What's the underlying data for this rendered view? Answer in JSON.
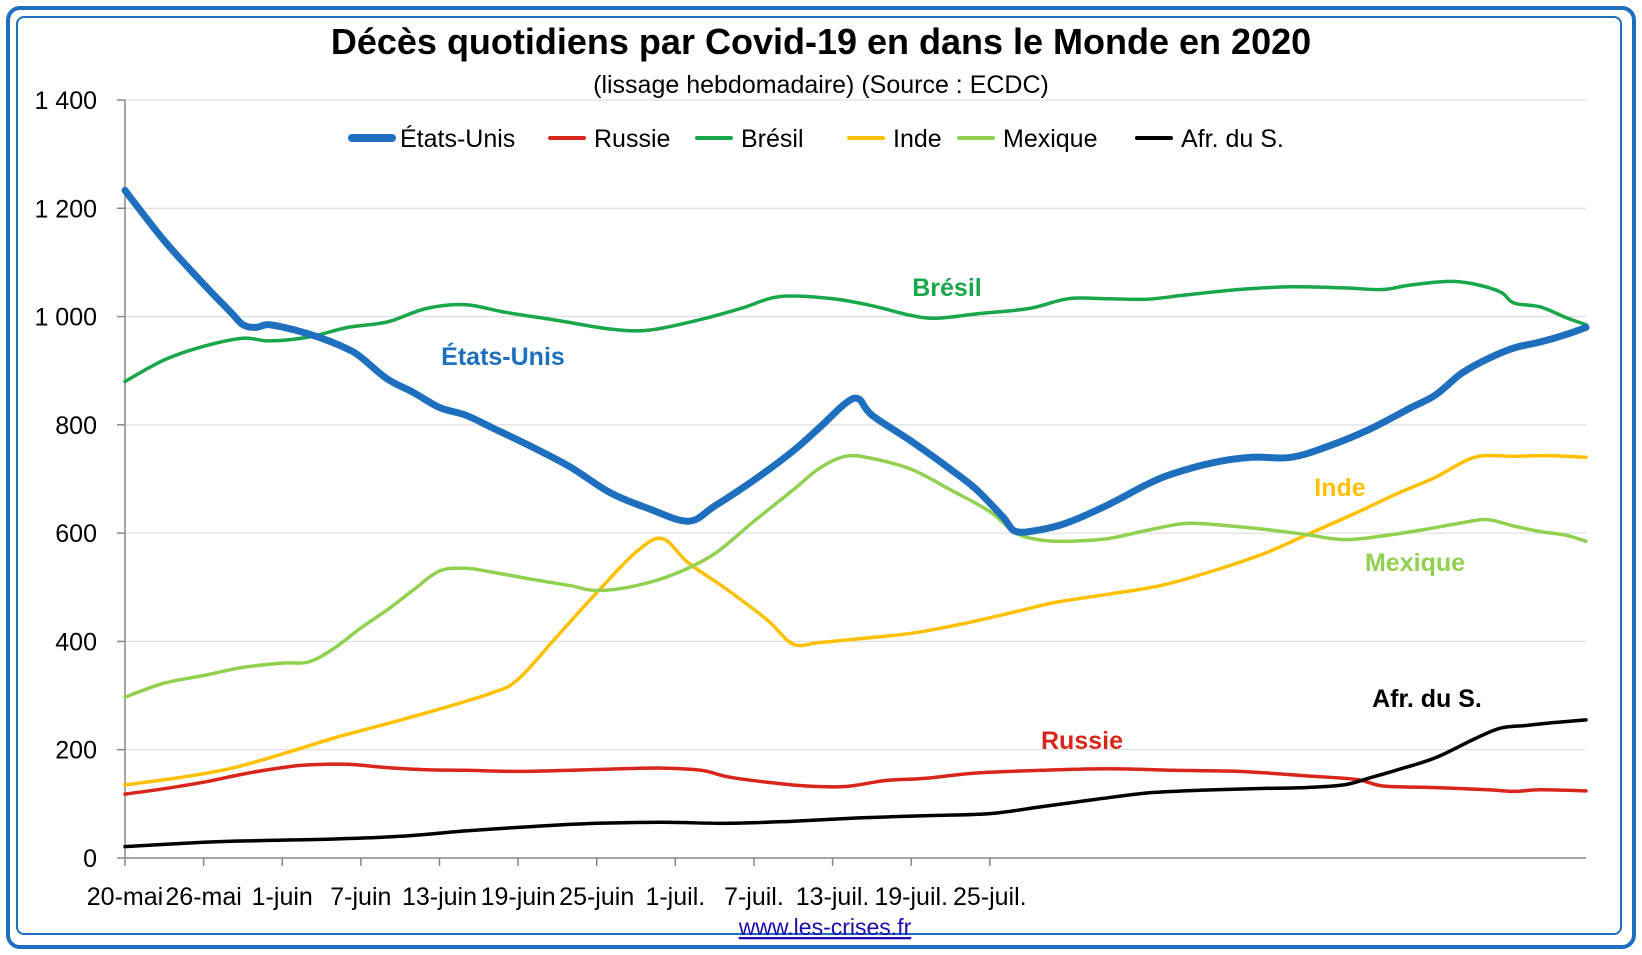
{
  "chart_data": {
    "type": "line",
    "title": "Décès quotidiens par Covid-19 en dans le Monde en 2020",
    "subtitle": "(lissage hebdomadaire) (Source : ECDC)",
    "xlabel": "",
    "ylabel": "",
    "ylim": [
      0,
      1400
    ],
    "yticks": [
      0,
      200,
      400,
      600,
      800,
      1000,
      1200,
      1400
    ],
    "ytick_labels": [
      "0",
      "200",
      "400",
      "600",
      "800",
      "1 000",
      "1 200",
      "1 400"
    ],
    "x_tick_labels": [
      "20-mai",
      "26-mai",
      "1-juin",
      "7-juin",
      "13-juin",
      "19-juin",
      "25-juin",
      "1-juil.",
      "7-juil.",
      "13-juil.",
      "19-juil.",
      "25-juil."
    ],
    "grid": true,
    "legend_position": "top",
    "series": [
      {
        "name": "États-Unis",
        "color": "#1f6fbf",
        "emphasis": true,
        "values": [
          [
            0,
            1233
          ],
          [
            3,
            1140
          ],
          [
            6,
            1060
          ],
          [
            8,
            1010
          ],
          [
            9,
            985
          ],
          [
            10,
            980
          ],
          [
            11,
            985
          ],
          [
            13,
            975
          ],
          [
            15,
            960
          ],
          [
            17,
            940
          ],
          [
            18,
            925
          ],
          [
            20,
            885
          ],
          [
            22,
            860
          ],
          [
            24,
            832
          ],
          [
            26,
            818
          ],
          [
            28,
            795
          ],
          [
            31,
            760
          ],
          [
            34,
            722
          ],
          [
            37,
            675
          ],
          [
            40,
            645
          ],
          [
            43,
            622
          ],
          [
            45,
            650
          ],
          [
            48,
            698
          ],
          [
            51,
            752
          ],
          [
            53,
            795
          ],
          [
            55,
            840
          ],
          [
            56,
            848
          ],
          [
            57,
            818
          ],
          [
            60,
            770
          ],
          [
            63,
            718
          ],
          [
            65,
            680
          ],
          [
            67,
            630
          ],
          [
            68,
            603
          ],
          [
            70,
            607
          ],
          [
            72,
            620
          ],
          [
            75,
            652
          ],
          [
            78,
            690
          ],
          [
            80,
            710
          ],
          [
            83,
            730
          ],
          [
            86,
            740
          ],
          [
            89,
            740
          ],
          [
            92,
            762
          ],
          [
            95,
            792
          ],
          [
            98,
            830
          ],
          [
            100,
            855
          ],
          [
            102,
            895
          ],
          [
            104,
            922
          ],
          [
            106,
            942
          ],
          [
            108,
            953
          ],
          [
            110,
            967
          ],
          [
            111.5,
            980
          ]
        ]
      },
      {
        "name": "Russie",
        "color": "#d9261c",
        "emphasis": false,
        "values": [
          [
            0,
            118
          ],
          [
            3,
            128
          ],
          [
            6,
            140
          ],
          [
            9,
            155
          ],
          [
            12,
            167
          ],
          [
            14,
            172
          ],
          [
            17,
            173
          ],
          [
            20,
            167
          ],
          [
            23,
            163
          ],
          [
            26,
            162
          ],
          [
            30,
            160
          ],
          [
            34,
            162
          ],
          [
            38,
            165
          ],
          [
            41,
            166
          ],
          [
            44,
            162
          ],
          [
            46,
            150
          ],
          [
            49,
            140
          ],
          [
            52,
            133
          ],
          [
            55,
            132
          ],
          [
            58,
            143
          ],
          [
            61,
            147
          ],
          [
            65,
            157
          ],
          [
            70,
            162
          ],
          [
            75,
            165
          ],
          [
            80,
            162
          ],
          [
            85,
            160
          ],
          [
            90,
            152
          ],
          [
            94,
            145
          ],
          [
            96,
            133
          ],
          [
            100,
            130
          ],
          [
            104,
            126
          ],
          [
            106,
            123
          ],
          [
            108,
            126
          ],
          [
            111.5,
            124
          ]
        ]
      },
      {
        "name": "Brésil",
        "color": "#1aa64a",
        "emphasis": false,
        "values": [
          [
            0,
            880
          ],
          [
            3,
            920
          ],
          [
            6,
            945
          ],
          [
            9,
            960
          ],
          [
            11,
            955
          ],
          [
            14,
            962
          ],
          [
            17,
            980
          ],
          [
            20,
            990
          ],
          [
            23,
            1015
          ],
          [
            26,
            1022
          ],
          [
            29,
            1008
          ],
          [
            33,
            993
          ],
          [
            37,
            977
          ],
          [
            40,
            975
          ],
          [
            44,
            995
          ],
          [
            47,
            1015
          ],
          [
            50,
            1037
          ],
          [
            54,
            1033
          ],
          [
            57,
            1020
          ],
          [
            60,
            1002
          ],
          [
            62,
            997
          ],
          [
            65,
            1005
          ],
          [
            69,
            1015
          ],
          [
            72,
            1033
          ],
          [
            75,
            1033
          ],
          [
            78,
            1032
          ],
          [
            81,
            1040
          ],
          [
            85,
            1050
          ],
          [
            89,
            1055
          ],
          [
            93,
            1053
          ],
          [
            96,
            1050
          ],
          [
            98,
            1058
          ],
          [
            101,
            1065
          ],
          [
            103,
            1060
          ],
          [
            105,
            1045
          ],
          [
            106,
            1025
          ],
          [
            108,
            1018
          ],
          [
            110,
            998
          ],
          [
            111.5,
            985
          ]
        ]
      },
      {
        "name": "Inde",
        "color": "#ffc000",
        "emphasis": false,
        "values": [
          [
            0,
            135
          ],
          [
            4,
            148
          ],
          [
            8,
            165
          ],
          [
            12,
            192
          ],
          [
            16,
            222
          ],
          [
            20,
            248
          ],
          [
            24,
            275
          ],
          [
            28,
            305
          ],
          [
            30,
            330
          ],
          [
            33,
            410
          ],
          [
            36,
            490
          ],
          [
            39,
            565
          ],
          [
            41,
            590
          ],
          [
            43,
            545
          ],
          [
            46,
            495
          ],
          [
            49,
            440
          ],
          [
            51,
            395
          ],
          [
            53,
            398
          ],
          [
            56,
            405
          ],
          [
            60,
            415
          ],
          [
            64,
            433
          ],
          [
            68,
            455
          ],
          [
            71,
            472
          ],
          [
            75,
            487
          ],
          [
            79,
            503
          ],
          [
            83,
            530
          ],
          [
            87,
            563
          ],
          [
            90,
            595
          ],
          [
            94,
            638
          ],
          [
            97,
            672
          ],
          [
            100,
            703
          ],
          [
            103,
            740
          ],
          [
            106,
            742
          ],
          [
            109,
            743
          ],
          [
            111.5,
            740
          ]
        ]
      },
      {
        "name": "Mexique",
        "color": "#92d050",
        "emphasis": false,
        "values": [
          [
            0,
            297
          ],
          [
            3,
            323
          ],
          [
            6,
            337
          ],
          [
            9,
            352
          ],
          [
            12,
            360
          ],
          [
            14,
            362
          ],
          [
            16,
            388
          ],
          [
            18,
            425
          ],
          [
            20,
            458
          ],
          [
            22,
            495
          ],
          [
            24,
            530
          ],
          [
            26,
            535
          ],
          [
            28,
            528
          ],
          [
            31,
            515
          ],
          [
            34,
            503
          ],
          [
            36,
            494
          ],
          [
            39,
            503
          ],
          [
            42,
            525
          ],
          [
            45,
            562
          ],
          [
            48,
            622
          ],
          [
            51,
            680
          ],
          [
            53,
            720
          ],
          [
            55,
            742
          ],
          [
            57,
            738
          ],
          [
            60,
            718
          ],
          [
            63,
            680
          ],
          [
            66,
            640
          ],
          [
            68,
            600
          ],
          [
            70,
            587
          ],
          [
            72,
            585
          ],
          [
            75,
            590
          ],
          [
            78,
            605
          ],
          [
            81,
            618
          ],
          [
            84,
            614
          ],
          [
            87,
            607
          ],
          [
            90,
            598
          ],
          [
            93,
            588
          ],
          [
            96,
            595
          ],
          [
            99,
            606
          ],
          [
            102,
            619
          ],
          [
            104,
            625
          ],
          [
            106,
            613
          ],
          [
            108,
            603
          ],
          [
            110,
            596
          ],
          [
            111.5,
            585
          ]
        ]
      },
      {
        "name": "Afr. du S.",
        "color": "#000000",
        "emphasis": false,
        "values": [
          [
            0,
            21
          ],
          [
            6,
            29
          ],
          [
            10,
            32
          ],
          [
            16,
            35
          ],
          [
            21,
            40
          ],
          [
            26,
            50
          ],
          [
            31,
            58
          ],
          [
            36,
            64
          ],
          [
            41,
            66
          ],
          [
            46,
            64
          ],
          [
            51,
            68
          ],
          [
            56,
            74
          ],
          [
            61,
            78
          ],
          [
            66,
            82
          ],
          [
            70,
            95
          ],
          [
            74,
            108
          ],
          [
            78,
            120
          ],
          [
            82,
            125
          ],
          [
            86,
            128
          ],
          [
            90,
            130
          ],
          [
            93,
            135
          ],
          [
            95,
            148
          ],
          [
            97,
            162
          ],
          [
            100,
            185
          ],
          [
            103,
            220
          ],
          [
            105,
            240
          ],
          [
            107,
            245
          ],
          [
            109,
            250
          ],
          [
            111.5,
            255
          ]
        ]
      }
    ],
    "annotations": [
      {
        "text": "Brésil",
        "series": "Brésil",
        "color": "#1aa64a"
      },
      {
        "text": "États-Unis",
        "series": "États-Unis",
        "color": "#1f6fbf"
      },
      {
        "text": "Inde",
        "series": "Inde",
        "color": "#ffc000"
      },
      {
        "text": "Mexique",
        "series": "Mexique",
        "color": "#92d050"
      },
      {
        "text": "Afr. du S.",
        "series": "Afr. du S.",
        "color": "#000000"
      },
      {
        "text": "Russie",
        "series": "Russie",
        "color": "#d9261c"
      }
    ],
    "source_link": "www.les-crises.fr"
  }
}
